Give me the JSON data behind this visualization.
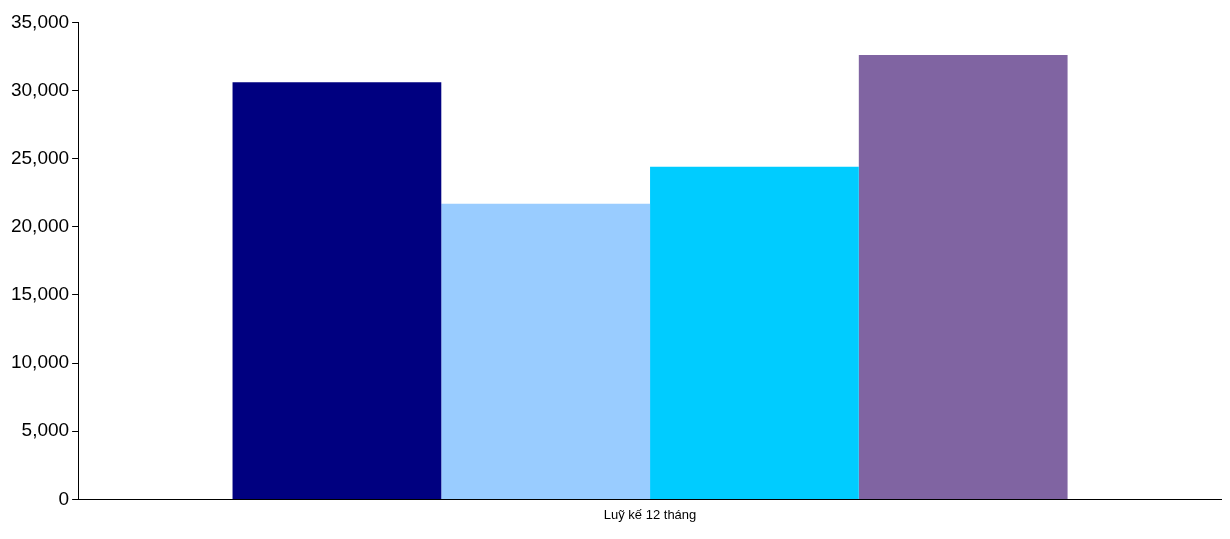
{
  "chart_data": {
    "type": "bar",
    "categories": [
      "Luỹ kế 12 tháng"
    ],
    "series": [
      {
        "color": "#000080",
        "values": [
          30600
        ]
      },
      {
        "color": "#99ccff",
        "values": [
          21700
        ]
      },
      {
        "color": "#00ccff",
        "values": [
          24400
        ]
      },
      {
        "color": "#8064a2",
        "values": [
          32600
        ]
      }
    ],
    "ylim": [
      0,
      35000
    ],
    "yticks": [
      {
        "value": 0,
        "label": "0"
      },
      {
        "value": 5000,
        "label": "5,000"
      },
      {
        "value": 10000,
        "label": "10,000"
      },
      {
        "value": 15000,
        "label": "15,000"
      },
      {
        "value": 20000,
        "label": "20,000"
      },
      {
        "value": 25000,
        "label": "25,000"
      },
      {
        "value": 30000,
        "label": "30,000"
      },
      {
        "value": 35000,
        "label": "35,000"
      }
    ],
    "grid": false,
    "legend": false
  }
}
